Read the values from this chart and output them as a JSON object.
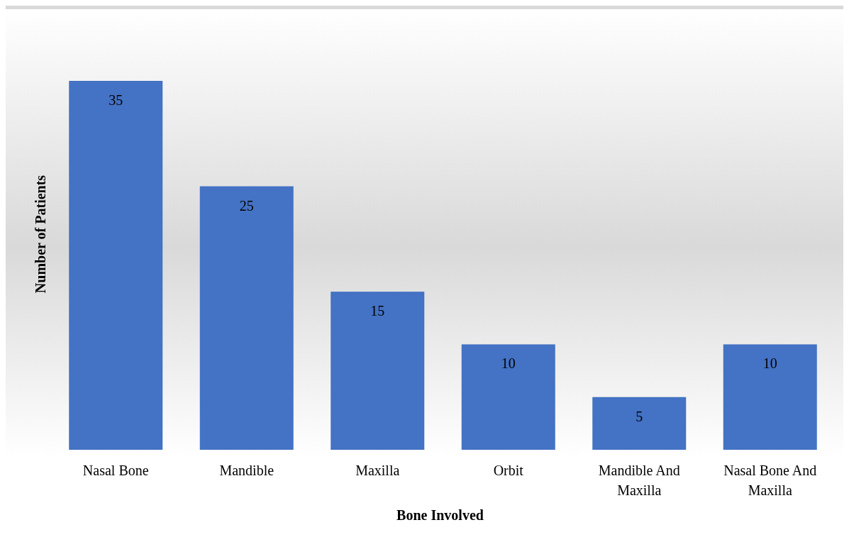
{
  "chart_data": {
    "type": "bar",
    "xlabel": "Bone Involved",
    "ylabel": "Number of Patients",
    "categories": [
      "Nasal Bone",
      "Mandible",
      "Maxilla",
      "Orbit",
      "Mandible And Maxilla",
      "Nasal Bone And Maxilla"
    ],
    "values": [
      35,
      25,
      15,
      10,
      5,
      10
    ],
    "color": "#4472c4",
    "data_labels": true
  }
}
